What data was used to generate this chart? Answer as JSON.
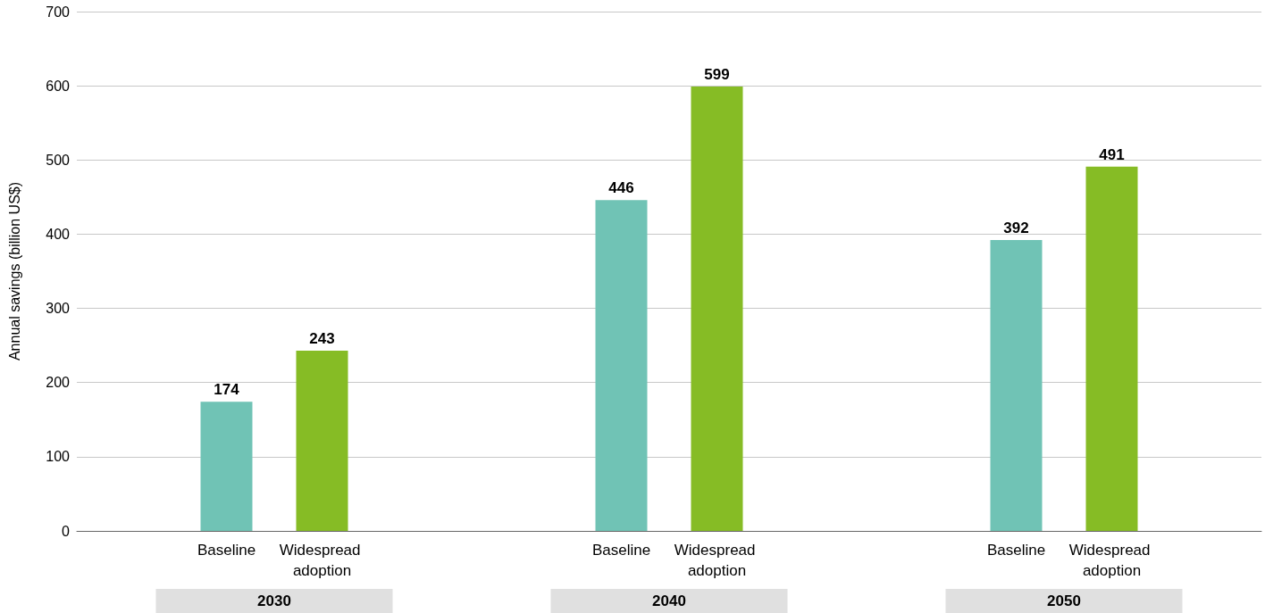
{
  "chart_data": {
    "type": "bar",
    "ylabel": "Annual savings (billion US$)",
    "categories": [
      "2030",
      "2040",
      "2050"
    ],
    "series": [
      {
        "name": "Baseline",
        "color": "#70c3b5",
        "values": [
          174,
          446,
          392
        ]
      },
      {
        "name": "Widespread adoption",
        "color": "#86bc25",
        "values": [
          243,
          599,
          491
        ]
      }
    ],
    "ylim": [
      0,
      700
    ],
    "yticks": [
      0,
      100,
      200,
      300,
      400,
      500,
      600,
      700
    ],
    "grid": "y",
    "data_labels": true,
    "legend": false
  }
}
